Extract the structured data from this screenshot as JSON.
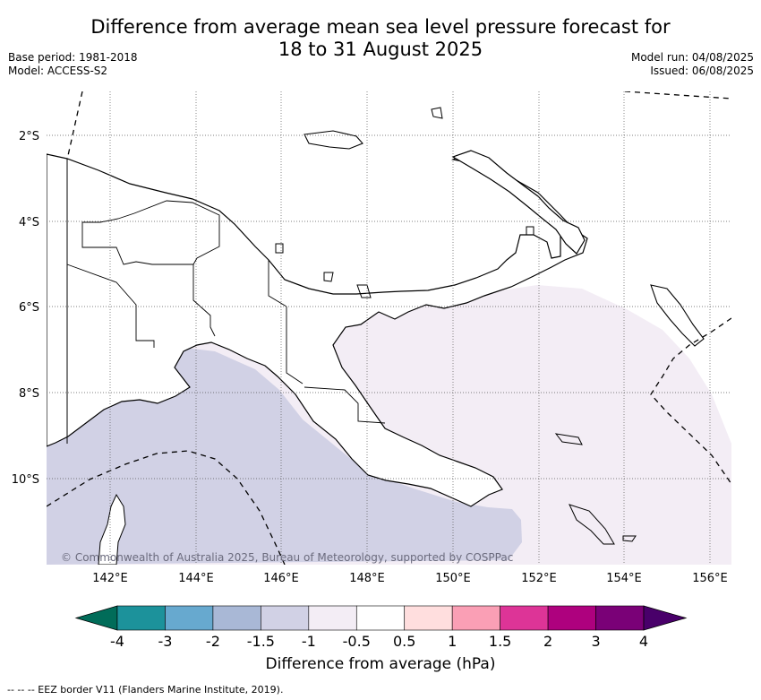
{
  "title": {
    "line1": "Difference from average mean sea level pressure forecast for",
    "line2": "18 to 31 August 2025"
  },
  "meta_left": [
    "Base period: 1981-2018",
    "Model: ACCESS-S2"
  ],
  "meta_right": [
    "Model run: 04/08/2025",
    "Issued: 06/08/2025"
  ],
  "map": {
    "lat_labels": [
      "2°S",
      "4°S",
      "6°S",
      "8°S",
      "10°S"
    ],
    "lon_labels": [
      "142°E",
      "144°E",
      "146°E",
      "148°E",
      "150°E",
      "152°E",
      "154°E",
      "156°E"
    ],
    "copyright": "© Commonwealth of Australia 2025, Bureau of Meteorology, supported by COSPPac",
    "colors": {
      "band_-1_to_-0.5": "#f3edf5",
      "band_-1.5_to_-1": "#d1d1e5",
      "land_outline": "#000000",
      "ocean": "#ffffff"
    }
  },
  "colorbar": {
    "tick_labels": [
      "-4",
      "-3",
      "-2",
      "-1.5",
      "-1",
      "-0.5",
      "0.5",
      "1",
      "1.5",
      "2",
      "3",
      "4"
    ],
    "colors": [
      "#016c59",
      "#1c929b",
      "#67a9cf",
      "#a9b8d6",
      "#d1d1e5",
      "#f3edf5",
      "#ffffff",
      "#ffdede",
      "#fa9fb5",
      "#dd3497",
      "#ae017e",
      "#7a0177",
      "#49006a"
    ],
    "label": "Difference from average (hPa)"
  },
  "footnote": "-- -- -- EEZ border V11 (Flanders Marine Institute, 2019)."
}
